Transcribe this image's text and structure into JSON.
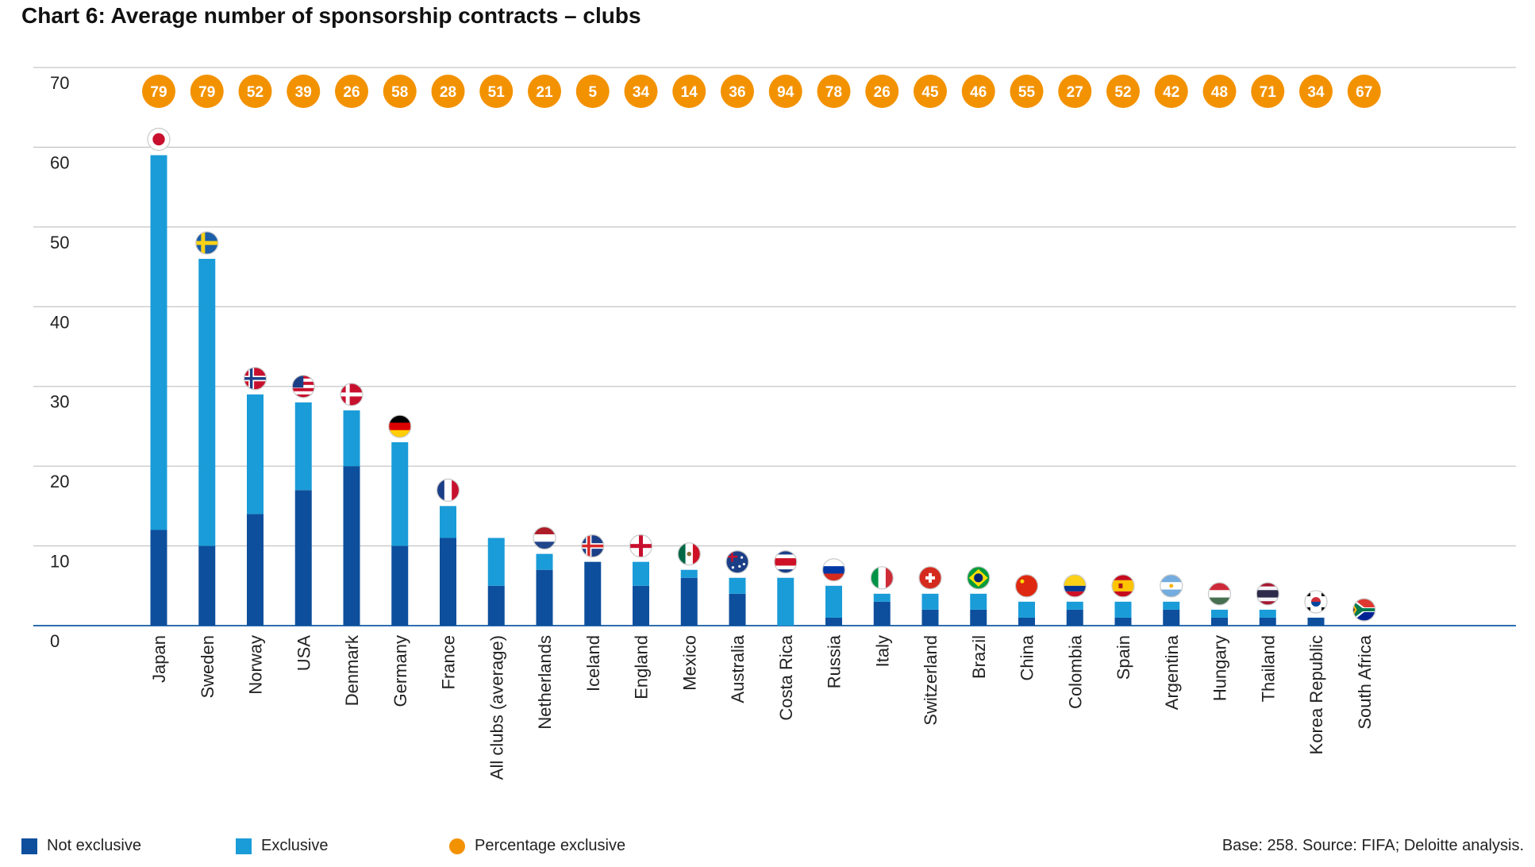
{
  "title": "Chart 6: Average number of sponsorship contracts – clubs",
  "source": "Base: 258. Source: FIFA; Deloitte analysis.",
  "legend": {
    "not_exclusive": "Not exclusive",
    "exclusive": "Exclusive",
    "percentage": "Percentage exclusive"
  },
  "colors": {
    "not_exclusive": "#0d4f9c",
    "exclusive": "#1a9cd8",
    "percentage": "#f39200",
    "grid": "#b7b7b7",
    "axis": "#2d6fb0"
  },
  "chart_data": {
    "type": "bar",
    "stacked": true,
    "ylim": [
      0,
      70
    ],
    "yticks": [
      0,
      10,
      20,
      30,
      40,
      50,
      60,
      70
    ],
    "grid": true,
    "legend_position": "bottom",
    "categories": [
      "Japan",
      "Sweden",
      "Norway",
      "USA",
      "Denmark",
      "Germany",
      "France",
      "All clubs (average)",
      "Netherlands",
      "Iceland",
      "England",
      "Mexico",
      "Australia",
      "Costa Rica",
      "Russia",
      "Italy",
      "Switzerland",
      "Brazil",
      "China",
      "Colombia",
      "Spain",
      "Argentina",
      "Hungary",
      "Thailand",
      "Korea Republic",
      "South Africa"
    ],
    "flags": [
      "japan-flag-icon",
      "sweden-flag-icon",
      "norway-flag-icon",
      "usa-flag-icon",
      "denmark-flag-icon",
      "germany-flag-icon",
      "france-flag-icon",
      "",
      "netherlands-flag-icon",
      "iceland-flag-icon",
      "england-flag-icon",
      "mexico-flag-icon",
      "australia-flag-icon",
      "costa-rica-flag-icon",
      "russia-flag-icon",
      "italy-flag-icon",
      "switzerland-flag-icon",
      "brazil-flag-icon",
      "china-flag-icon",
      "colombia-flag-icon",
      "spain-flag-icon",
      "argentina-flag-icon",
      "hungary-flag-icon",
      "thailand-flag-icon",
      "korea-republic-flag-icon",
      "south-africa-flag-icon"
    ],
    "series": [
      {
        "name": "Not exclusive",
        "values": [
          12,
          10,
          14,
          17,
          20,
          10,
          11,
          5,
          7,
          8,
          5,
          6,
          4,
          0,
          1,
          3,
          2,
          2,
          1,
          2,
          1,
          2,
          1,
          1,
          1,
          0
        ]
      },
      {
        "name": "Exclusive",
        "values": [
          47,
          36,
          15,
          11,
          7,
          13,
          4,
          6,
          2,
          0,
          3,
          1,
          2,
          6,
          4,
          1,
          2,
          2,
          2,
          1,
          2,
          1,
          1,
          1,
          0,
          0
        ]
      }
    ],
    "percentage_exclusive": [
      79,
      79,
      52,
      39,
      26,
      58,
      28,
      51,
      21,
      5,
      34,
      14,
      36,
      94,
      78,
      26,
      45,
      46,
      55,
      27,
      52,
      42,
      48,
      71,
      34,
      67
    ]
  }
}
